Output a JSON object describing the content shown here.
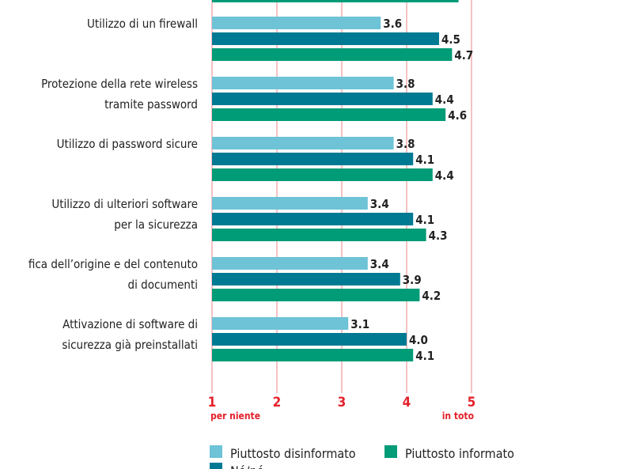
{
  "chart_data": {
    "type": "bar",
    "orientation": "horizontal",
    "categories": [
      [
        "Utilizzo di un firewall"
      ],
      [
        "Protezione della rete wireless",
        "tramite password"
      ],
      [
        "Utilizzo di password sicure"
      ],
      [
        "Utilizzo di ulteriori software",
        "per la sicurezza"
      ],
      [
        "fica dell’origine e del contenuto",
        "di documenti"
      ],
      [
        "Attivazione di software di",
        "sicurezza già preinstallati"
      ]
    ],
    "series": [
      {
        "name": "Piuttosto disinformato",
        "color": "#6ec3d6",
        "values": [
          3.6,
          3.8,
          3.8,
          3.4,
          3.4,
          3.1
        ]
      },
      {
        "name": "Né/né",
        "color": "#007a93",
        "values": [
          4.5,
          4.4,
          4.1,
          4.1,
          3.9,
          4.0
        ]
      },
      {
        "name": "Piuttosto informato",
        "color": "#009b77",
        "values": [
          4.7,
          4.6,
          4.4,
          4.3,
          4.2,
          4.1
        ]
      }
    ],
    "partial_top_bar": {
      "series": "Piuttosto informato",
      "value": 4.8
    },
    "xlim": [
      1,
      5
    ],
    "xticks": [
      "1",
      "2",
      "3",
      "4",
      "5"
    ],
    "xtick_sublabels": {
      "min": "per niente",
      "max": "in toto"
    },
    "grid": true,
    "gridline_color": "#f2a0a4",
    "axis_label_color": "#e3222c",
    "legend_position": "bottom"
  }
}
